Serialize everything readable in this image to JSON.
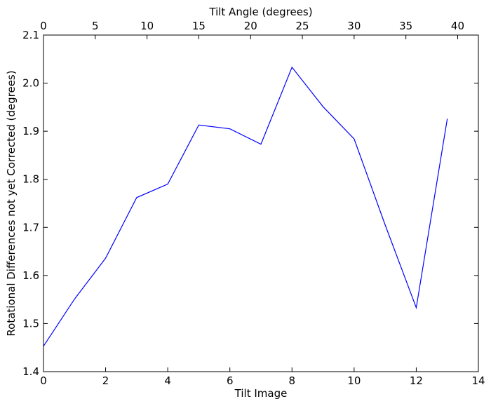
{
  "chart_data": {
    "type": "line",
    "title": "",
    "xlabel": "Tilt Image",
    "ylabel": "Rotational Differences not yet Corrected (degrees)",
    "x2label": "Tilt Angle (degrees)",
    "xlim": [
      0,
      14
    ],
    "ylim": [
      1.4,
      2.1
    ],
    "x2lim": [
      0,
      42
    ],
    "xticks": [
      0,
      2,
      4,
      6,
      8,
      10,
      12,
      14
    ],
    "yticks": [
      1.4,
      1.5,
      1.6,
      1.7,
      1.8,
      1.9,
      2.0,
      2.1
    ],
    "x2ticks": [
      0,
      5,
      10,
      15,
      20,
      25,
      30,
      35,
      40
    ],
    "xtick_labels": [
      "0",
      "2",
      "4",
      "6",
      "8",
      "10",
      "12",
      "14"
    ],
    "ytick_labels": [
      "1.4",
      "1.5",
      "1.6",
      "1.7",
      "1.8",
      "1.9",
      "2.0",
      "2.1"
    ],
    "x2tick_labels": [
      "0",
      "5",
      "10",
      "15",
      "20",
      "25",
      "30",
      "35",
      "40"
    ],
    "grid": false,
    "line_color": "#0000ff",
    "series": [
      {
        "x": [
          0,
          1,
          2,
          3,
          4,
          5,
          6,
          7,
          8,
          9,
          10,
          11,
          12,
          13
        ],
        "values": [
          1.453,
          1.551,
          1.636,
          1.762,
          1.79,
          1.913,
          1.905,
          1.873,
          2.033,
          1.951,
          1.884,
          1.705,
          1.533,
          1.926
        ]
      }
    ]
  }
}
